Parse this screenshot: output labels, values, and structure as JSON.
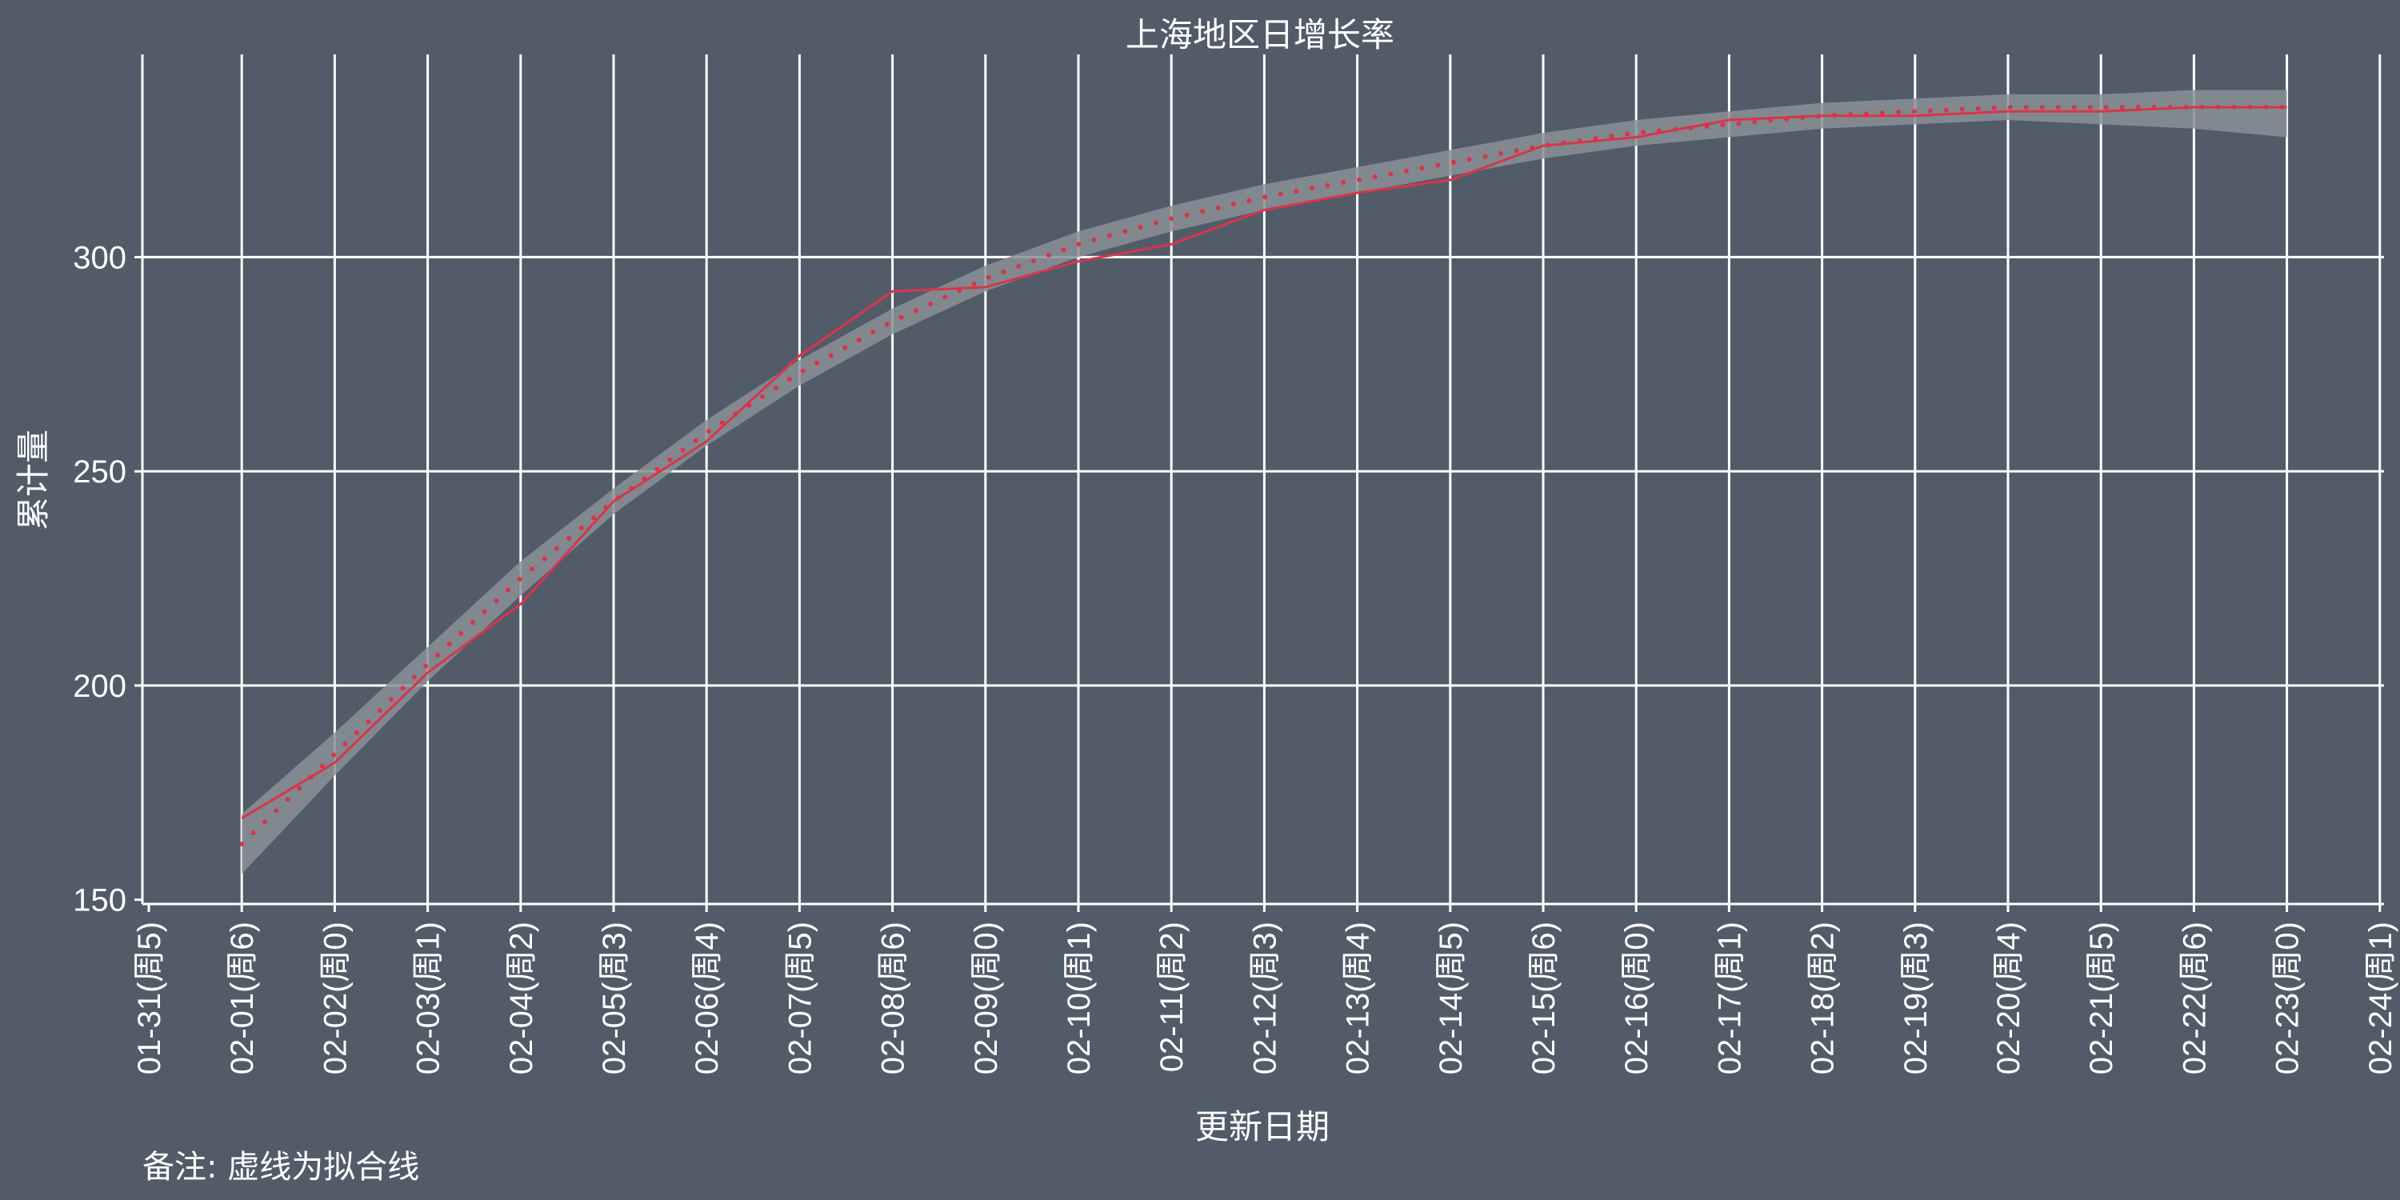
{
  "chart_data": {
    "type": "line",
    "title": "上海地区日增长率",
    "xlabel": "更新日期",
    "ylabel": "累计量",
    "note": "备注: 虚线为拟合线",
    "categories": [
      "01-31(周5)",
      "02-01(周6)",
      "02-02(周0)",
      "02-03(周1)",
      "02-04(周2)",
      "02-05(周3)",
      "02-06(周4)",
      "02-07(周5)",
      "02-08(周6)",
      "02-09(周0)",
      "02-10(周1)",
      "02-11(周2)",
      "02-12(周3)",
      "02-13(周4)",
      "02-14(周5)",
      "02-15(周6)",
      "02-16(周0)",
      "02-17(周1)",
      "02-18(周2)",
      "02-19(周3)",
      "02-20(周4)",
      "02-21(周5)",
      "02-22(周6)",
      "02-23(周0)",
      "02-24(周1)"
    ],
    "yticks": [
      150,
      200,
      250,
      300
    ],
    "ylim": [
      149,
      347
    ],
    "grid": true,
    "line_color": "#d9344a",
    "band_color": "#8a8f97",
    "series": [
      {
        "style": "solid",
        "values": [
          null,
          169,
          182,
          203,
          219,
          243,
          257,
          277,
          292,
          293,
          299,
          303,
          311,
          315,
          318,
          326,
          328,
          332,
          333,
          333,
          334,
          334,
          335,
          335,
          null
        ]
      },
      {
        "style": "dotted",
        "values": [
          null,
          163,
          184,
          205,
          225,
          243,
          259,
          273,
          285,
          295,
          303,
          309,
          314,
          318,
          322,
          326,
          329,
          331,
          333,
          334,
          335,
          335,
          335,
          335,
          null
        ]
      }
    ],
    "band": [
      {
        "x": 1,
        "low": 156,
        "high": 170
      },
      {
        "x": 2,
        "low": 179,
        "high": 189
      },
      {
        "x": 3,
        "low": 201,
        "high": 209
      },
      {
        "x": 4,
        "low": 221,
        "high": 229
      },
      {
        "x": 5,
        "low": 240,
        "high": 246
      },
      {
        "x": 6,
        "low": 256,
        "high": 262
      },
      {
        "x": 7,
        "low": 270,
        "high": 276
      },
      {
        "x": 8,
        "low": 282,
        "high": 288
      },
      {
        "x": 9,
        "low": 292,
        "high": 298
      },
      {
        "x": 10,
        "low": 300,
        "high": 306
      },
      {
        "x": 11,
        "low": 306,
        "high": 312
      },
      {
        "x": 12,
        "low": 311,
        "high": 317
      },
      {
        "x": 13,
        "low": 315,
        "high": 321
      },
      {
        "x": 14,
        "low": 319,
        "high": 325
      },
      {
        "x": 15,
        "low": 323,
        "high": 329
      },
      {
        "x": 16,
        "low": 326,
        "high": 332
      },
      {
        "x": 17,
        "low": 328,
        "high": 334
      },
      {
        "x": 18,
        "low": 330,
        "high": 336
      },
      {
        "x": 19,
        "low": 331,
        "high": 337
      },
      {
        "x": 20,
        "low": 332,
        "high": 338
      },
      {
        "x": 21,
        "low": 331,
        "high": 338
      },
      {
        "x": 22,
        "low": 330,
        "high": 339
      },
      {
        "x": 23,
        "low": 328,
        "high": 339
      }
    ]
  }
}
